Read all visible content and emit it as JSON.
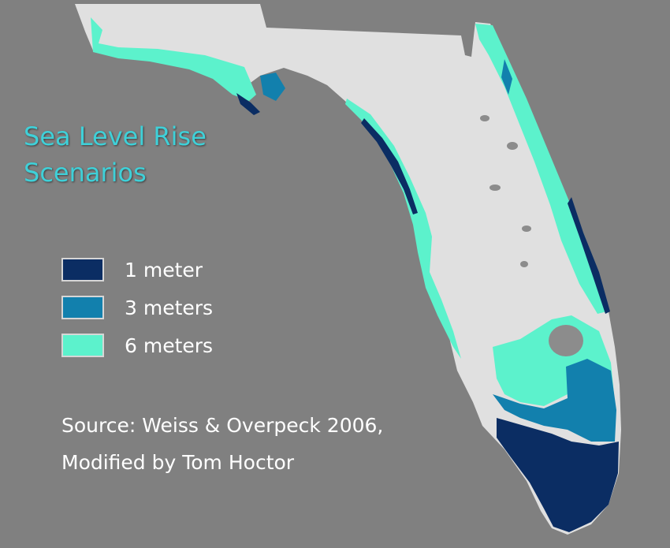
{
  "title": {
    "line1": "Sea Level Rise",
    "line2": "Scenarios",
    "color": "#3fd0d8"
  },
  "legend": {
    "items": [
      {
        "label": "1 meter",
        "color": "#0b2d63"
      },
      {
        "label": "3 meters",
        "color": "#1280ad"
      },
      {
        "label": "6 meters",
        "color": "#5cf2cc"
      }
    ]
  },
  "source": {
    "line1": "Source:  Weiss & Overpeck 2006,",
    "line2": "Modified by Tom Hoctor"
  },
  "map": {
    "land_color": "#e0e0e0",
    "water_background": "#808080",
    "lakes_color": "#8c8c8c"
  }
}
